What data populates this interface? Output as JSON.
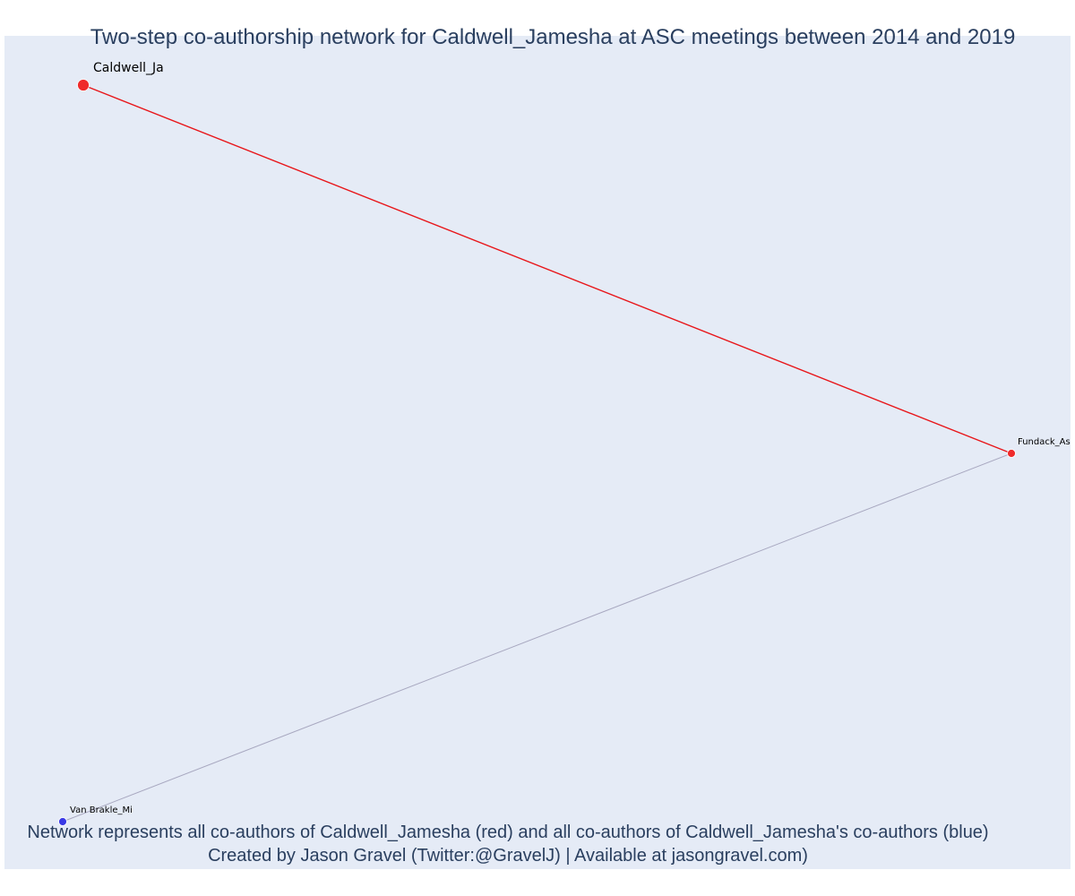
{
  "title": "Two-step co-authorship network for Caldwell_Jamesha at ASC meetings between 2014 and 2019",
  "caption": {
    "line1": "Network represents all co-authors of Caldwell_Jamesha (red) and all co-authors of Caldwell_Jamesha's co-authors (blue)",
    "line2": "Created by Jason Gravel (Twitter:@GravelJ) | Available at jasongravel.com)"
  },
  "colors": {
    "plot_background": "#e5ebf6",
    "title_text": "#2a3f5f",
    "first_step": "#ef2b2b",
    "second_step": "#3a3ae6",
    "first_step_edge": "#e8161a",
    "second_step_edge": "#a8a8c0"
  },
  "network": {
    "nodes": [
      {
        "id": "caldwell",
        "label": "Caldwell_Ja",
        "group": "ego"
      },
      {
        "id": "fundack",
        "label": "Fundack_As",
        "group": "first_step"
      },
      {
        "id": "vanbrakle",
        "label": "Van Brakle_Mi",
        "group": "second_step"
      }
    ],
    "edges": [
      {
        "source": "caldwell",
        "target": "fundack",
        "type": "first_step"
      },
      {
        "source": "fundack",
        "target": "vanbrakle",
        "type": "second_step"
      }
    ]
  }
}
